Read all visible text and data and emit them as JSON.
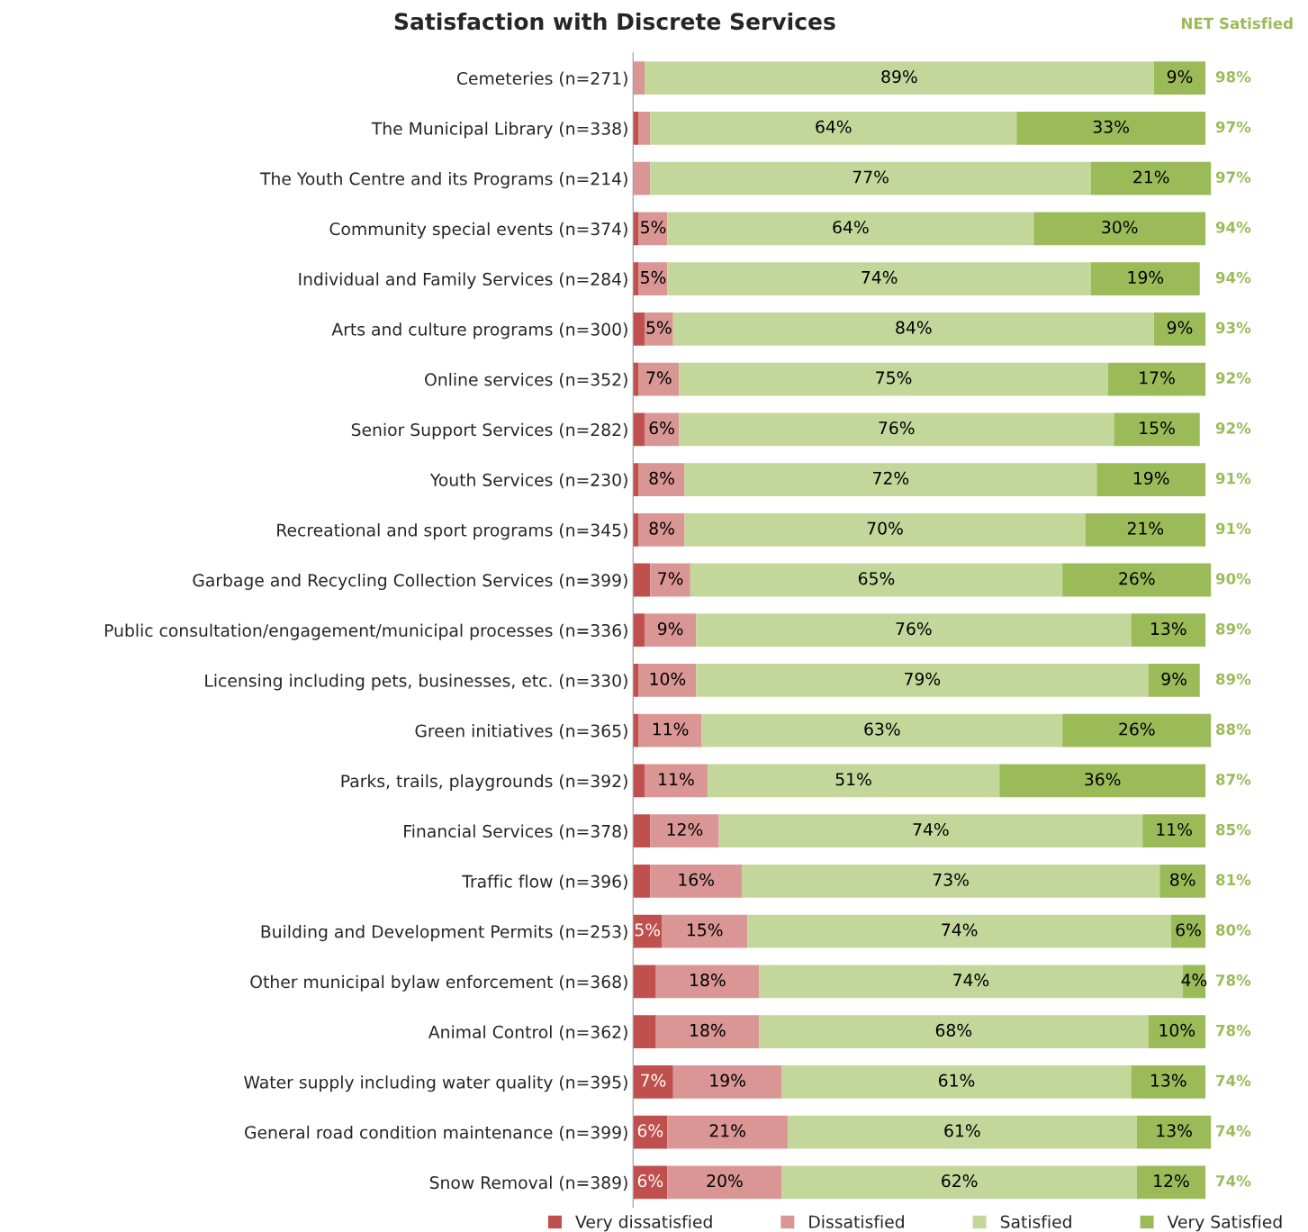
{
  "chart_data": {
    "type": "bar",
    "orientation": "horizontal",
    "stacked": true,
    "title": "Satisfaction with Discrete Services",
    "categories": [
      "Cemeteries (n=271)",
      "The Municipal Library (n=338)",
      "The Youth Centre and its Programs (n=214)",
      "Community special events (n=374)",
      "Individual and Family Services (n=284)",
      "Arts and culture programs (n=300)",
      "Online services (n=352)",
      "Senior Support Services (n=282)",
      "Youth Services (n=230)",
      "Recreational and sport programs (n=345)",
      "Garbage and Recycling Collection Services (n=399)",
      "Public consultation/engagement/municipal processes (n=336)",
      "Licensing including pets, businesses, etc. (n=330)",
      "Green initiatives (n=365)",
      "Parks, trails, playgrounds (n=392)",
      "Financial Services (n=378)",
      "Traffic flow (n=396)",
      "Building and Development Permits (n=253)",
      "Other municipal bylaw enforcement (n=368)",
      "Animal Control (n=362)",
      "Water supply including water quality (n=395)",
      "General road condition maintenance (n=399)",
      "Snow Removal (n=389)"
    ],
    "series": [
      {
        "name": "Very dissatisfied",
        "color": "#c0504d",
        "values": [
          0,
          1,
          0,
          1,
          1,
          2,
          1,
          2,
          1,
          1,
          3,
          2,
          1,
          1,
          2,
          3,
          3,
          5,
          4,
          4,
          7,
          6,
          6
        ],
        "value_labels": [
          null,
          null,
          null,
          null,
          null,
          null,
          null,
          null,
          null,
          null,
          null,
          null,
          null,
          null,
          null,
          null,
          null,
          "5%",
          null,
          null,
          "7%",
          "6%",
          "6%"
        ]
      },
      {
        "name": "Dissatisfied",
        "color": "#d99694",
        "values": [
          2,
          2,
          3,
          5,
          5,
          5,
          7,
          6,
          8,
          8,
          7,
          9,
          10,
          11,
          11,
          12,
          16,
          15,
          18,
          18,
          19,
          21,
          20
        ],
        "value_labels": [
          null,
          null,
          null,
          "5%",
          "5%",
          "5%",
          "7%",
          "6%",
          "8%",
          "8%",
          "7%",
          "9%",
          "10%",
          "11%",
          "11%",
          "12%",
          "16%",
          "15%",
          "18%",
          "18%",
          "19%",
          "21%",
          "20%"
        ]
      },
      {
        "name": "Satisfied",
        "color": "#c4d79b",
        "values": [
          89,
          64,
          77,
          64,
          74,
          84,
          75,
          76,
          72,
          70,
          65,
          76,
          79,
          63,
          51,
          74,
          73,
          74,
          74,
          68,
          61,
          61,
          62
        ],
        "value_labels": [
          "89%",
          "64%",
          "77%",
          "64%",
          "74%",
          "84%",
          "75%",
          "76%",
          "72%",
          "70%",
          "65%",
          "76%",
          "79%",
          "63%",
          "51%",
          "74%",
          "73%",
          "74%",
          "74%",
          "68%",
          "61%",
          "61%",
          "62%"
        ]
      },
      {
        "name": "Very Satisfied",
        "color": "#9bbb59",
        "values": [
          9,
          33,
          21,
          30,
          19,
          9,
          17,
          15,
          19,
          21,
          26,
          13,
          9,
          26,
          36,
          11,
          8,
          6,
          4,
          10,
          13,
          13,
          12
        ],
        "value_labels": [
          "9%",
          "33%",
          "21%",
          "30%",
          "19%",
          "9%",
          "17%",
          "15%",
          "19%",
          "21%",
          "26%",
          "13%",
          "9%",
          "26%",
          "36%",
          "11%",
          "8%",
          "6%",
          "4%",
          "10%",
          "13%",
          "13%",
          "12%"
        ]
      }
    ],
    "legend": "bottom",
    "grid": false,
    "tick_labels": "y",
    "annotations": [
      "NET Satisfied",
      "98%",
      "97%",
      "97%",
      "94%",
      "94%",
      "93%",
      "92%",
      "92%",
      "91%",
      "91%",
      "90%",
      "89%",
      "89%",
      "88%",
      "87%",
      "85%",
      "81%",
      "80%",
      "78%",
      "78%",
      "74%",
      "74%",
      "74%"
    ]
  }
}
